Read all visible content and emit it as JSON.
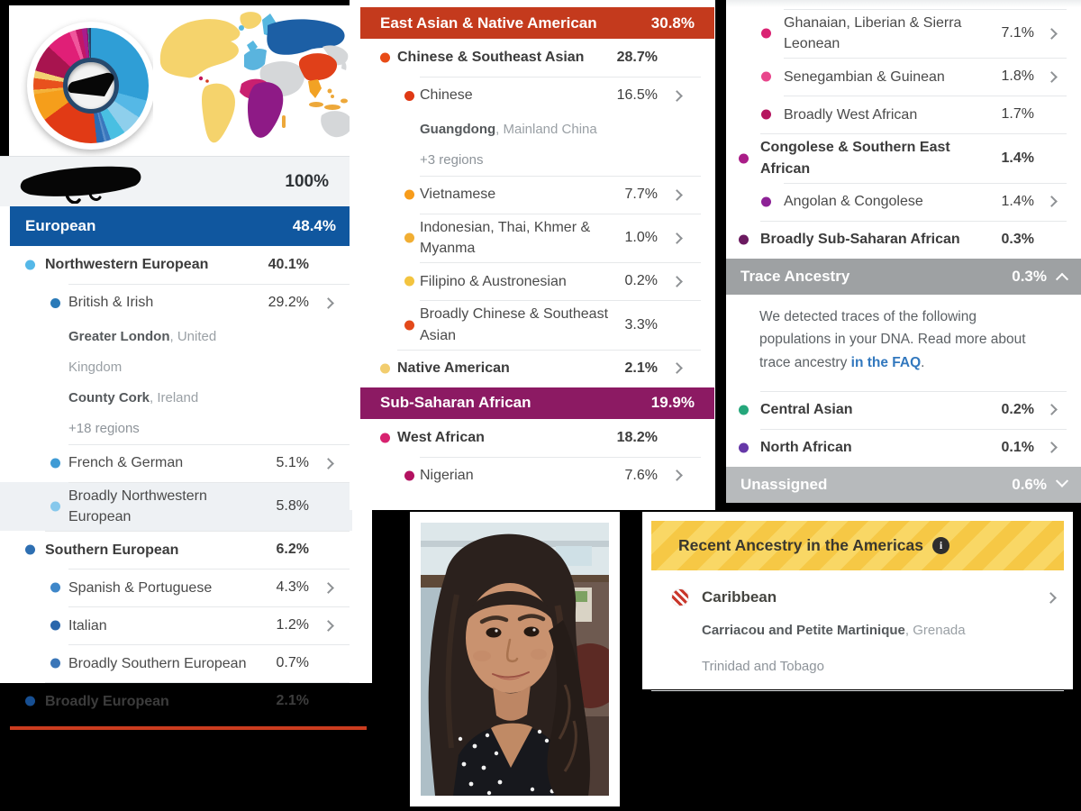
{
  "colors": {
    "european_header": "#10579f",
    "east_asian_header": "#c43a1d",
    "subsaharan_header": "#8c1a63",
    "trace_header": "#9ea1a3",
    "unassigned_header": "#b7babc",
    "americas_yellow": "#f6c845",
    "left_red_bar": "#cb3c1f",
    "link_blue": "#3278be"
  },
  "left_panel": {
    "donut": {
      "segments": [
        {
          "label": "British & Irish",
          "value": 29.2,
          "color": "#2f9ed6"
        },
        {
          "label": "French & German",
          "value": 5.1,
          "color": "#55b8e6"
        },
        {
          "label": "Broadly Northwestern European",
          "value": 5.8,
          "color": "#8ecfec"
        },
        {
          "label": "Spanish & Portuguese",
          "value": 4.3,
          "color": "#49bfe2"
        },
        {
          "label": "Italian",
          "value": 1.2,
          "color": "#3a77bd"
        },
        {
          "label": "Broadly Southern European",
          "value": 0.7,
          "color": "#5a8fca"
        },
        {
          "label": "Broadly European",
          "value": 2.1,
          "color": "#2b6cb4"
        },
        {
          "label": "Chinese",
          "value": 16.5,
          "color": "#e13a15"
        },
        {
          "label": "Vietnamese",
          "value": 7.7,
          "color": "#f59e1b"
        },
        {
          "label": "Indonesian, Thai, Khmer & Myanma",
          "value": 1.0,
          "color": "#f4b139"
        },
        {
          "label": "Filipino & Austronesian",
          "value": 0.2,
          "color": "#f6c94a"
        },
        {
          "label": "Broadly Chinese & Southeast Asian",
          "value": 3.3,
          "color": "#e8511d"
        },
        {
          "label": "Native American",
          "value": 2.1,
          "color": "#f3d172"
        },
        {
          "label": "Nigerian",
          "value": 7.6,
          "color": "#a8144f"
        },
        {
          "label": "Ghanaian, Liberian & Sierra Leonean",
          "value": 7.1,
          "color": "#e01f77"
        },
        {
          "label": "Senegambian & Guinean",
          "value": 1.8,
          "color": "#f0569c"
        },
        {
          "label": "Broadly West African",
          "value": 1.7,
          "color": "#c21667"
        },
        {
          "label": "Angolan & Congolese",
          "value": 1.4,
          "color": "#a81c8c"
        },
        {
          "label": "Broadly Sub-Saharan African",
          "value": 0.3,
          "color": "#7a1566"
        },
        {
          "label": "Central Asian",
          "value": 0.2,
          "color": "#2aa87c"
        },
        {
          "label": "North African",
          "value": 0.1,
          "color": "#6a3ab2"
        },
        {
          "label": "Unassigned",
          "value": 0.6,
          "color": "#24456b"
        }
      ]
    },
    "map_colors": {
      "americas": "#f5d36c",
      "nw_europe": "#56b7e0",
      "europe": "#4aa3d8",
      "east_europe_russia": "#1c5fa5",
      "china": "#e04019",
      "se_asia": "#f2a224",
      "islands": "#eda83a",
      "west_africa": "#c92070",
      "africa": "#8e1a86",
      "other_land": "#d5d7d9"
    },
    "total_row": {
      "percent": "100%",
      "name_redacted": true
    },
    "sections": [
      {
        "header": {
          "label": "European",
          "percent": "48.4%",
          "bg": "#10579f"
        },
        "rows": [
          {
            "label": "Northwestern European",
            "percent": "40.1%",
            "level": 1,
            "bullet": "#55b8e8"
          },
          {
            "label": "British & Irish",
            "percent": "29.2%",
            "level": 2,
            "bullet": "#2a7ab8",
            "chevron": true,
            "sublines": [
              {
                "strong": "Greater London",
                "rest": ", United Kingdom"
              },
              {
                "strong": "County Cork",
                "rest": ", Ireland"
              },
              {
                "strong": "",
                "rest": "+18 regions",
                "muted": true
              }
            ]
          },
          {
            "label": "French & German",
            "percent": "5.1%",
            "level": 2,
            "bullet": "#3f9bd5",
            "chevron": true
          },
          {
            "label": "Broadly Northwestern European",
            "percent": "5.8%",
            "level": 2,
            "bullet": "#86c8ec",
            "highlight": true
          },
          {
            "label": "Southern European",
            "percent": "6.2%",
            "level": 1,
            "bullet": "#2e6fb2"
          },
          {
            "label": "Spanish & Portuguese",
            "percent": "4.3%",
            "level": 2,
            "bullet": "#3e87c9",
            "chevron": true
          },
          {
            "label": "Italian",
            "percent": "1.2%",
            "level": 2,
            "bullet": "#2a67ac",
            "chevron": true
          },
          {
            "label": "Broadly Southern European",
            "percent": "0.7%",
            "level": 2,
            "bullet": "#3a76b8"
          },
          {
            "label": "Broadly European",
            "percent": "2.1%",
            "level": 1,
            "bullet": "#174f92"
          }
        ]
      }
    ]
  },
  "middle_panel": {
    "sections": [
      {
        "header": {
          "label": "East Asian & Native American",
          "percent": "30.8%",
          "bg": "#c43a1d"
        },
        "rows": [
          {
            "label": "Chinese & Southeast Asian",
            "percent": "28.7%",
            "level": 1,
            "bullet": "#e84b16"
          },
          {
            "label": "Chinese",
            "percent": "16.5%",
            "level": 2,
            "bullet": "#df3914",
            "chevron": true,
            "sublines": [
              {
                "strong": "Guangdong",
                "rest": ", Mainland China"
              },
              {
                "strong": "",
                "rest": "+3 regions",
                "muted": true
              }
            ]
          },
          {
            "label": "Vietnamese",
            "percent": "7.7%",
            "level": 2,
            "bullet": "#f79c1b",
            "chevron": true
          },
          {
            "label": "Indonesian, Thai, Khmer & Myanma",
            "percent": "1.0%",
            "level": 2,
            "bullet": "#f1ae33",
            "chevron": true,
            "wrap": true
          },
          {
            "label": "Filipino & Austronesian",
            "percent": "0.2%",
            "level": 2,
            "bullet": "#f3c43f",
            "chevron": true
          },
          {
            "label": "Broadly Chinese & Southeast Asian",
            "percent": "3.3%",
            "level": 2,
            "bullet": "#e3491a",
            "wrap": true
          },
          {
            "label": "Native American",
            "percent": "2.1%",
            "level": 1,
            "bullet": "#f2cd6e",
            "chevron": true
          }
        ]
      },
      {
        "header": {
          "label": "Sub-Saharan African",
          "percent": "19.9%",
          "bg": "#8c1a63"
        },
        "rows": [
          {
            "label": "West African",
            "percent": "18.2%",
            "level": 1,
            "bullet": "#d7226f"
          },
          {
            "label": "Nigerian",
            "percent": "7.6%",
            "level": 2,
            "bullet": "#b31160",
            "chevron": true
          }
        ]
      }
    ]
  },
  "right_panel": {
    "sections": [
      {
        "rows": [
          {
            "label": "Ghanaian, Liberian & Sierra Leonean",
            "percent": "7.1%",
            "level": 2,
            "bullet": "#da2373",
            "chevron": true,
            "wrap": true
          },
          {
            "label": "Senegambian & Guinean",
            "percent": "1.8%",
            "level": 2,
            "bullet": "#e8468c",
            "chevron": true
          },
          {
            "label": "Broadly West African",
            "percent": "1.7%",
            "level": 2,
            "bullet": "#b5155f"
          },
          {
            "label": "Congolese & Southern East African",
            "percent": "1.4%",
            "level": 1,
            "bullet": "#aa1d88"
          },
          {
            "label": "Angolan & Congolese",
            "percent": "1.4%",
            "level": 2,
            "bullet": "#8d2296",
            "chevron": true
          },
          {
            "label": "Broadly Sub-Saharan African",
            "percent": "0.3%",
            "level": 1,
            "bullet": "#6b1a60"
          }
        ]
      },
      {
        "header": {
          "label": "Trace Ancestry",
          "percent": "0.3%",
          "bg": "#9ea1a3",
          "chevron": "up"
        },
        "paragraph": {
          "before": "We detected traces of the following populations in your DNA. Read more about trace ancestry ",
          "link": "in the FAQ",
          "after": "."
        },
        "rows": [
          {
            "label": "Central Asian",
            "percent": "0.2%",
            "level": 1,
            "bullet": "#25a77b",
            "chevron": true
          },
          {
            "label": "North African",
            "percent": "0.1%",
            "level": 1,
            "bullet": "#6638a8",
            "chevron": true
          }
        ]
      },
      {
        "header": {
          "label": "Unassigned",
          "percent": "0.6%",
          "bg": "#b7babc",
          "chevron": "down"
        },
        "rows": []
      }
    ]
  },
  "americas_panel": {
    "header": {
      "label": "Recent Ancestry in the Americas",
      "info_icon": "i"
    },
    "row": {
      "label": "Caribbean",
      "chevron": true
    },
    "sublines": [
      {
        "strong": "Carriacou and Petite Martinique",
        "rest": ", Grenada"
      },
      {
        "strong": "",
        "rest": "Trinidad and Tobago",
        "muted": true
      }
    ]
  },
  "photo": {
    "description": "selfie portrait of a woman with dark wavy hair wearing a black polka-dot top"
  }
}
